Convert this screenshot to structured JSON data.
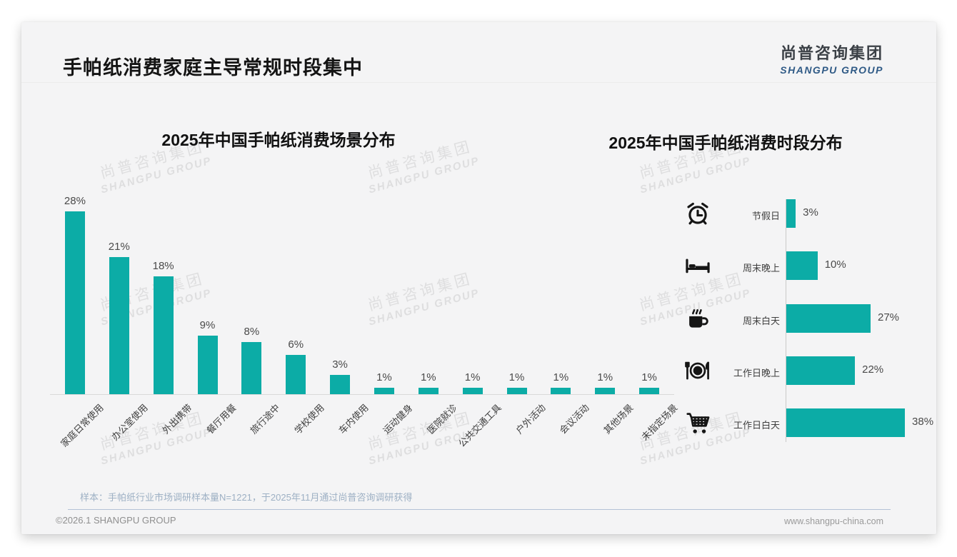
{
  "page": {
    "title": "手帕纸消费家庭主导常规时段集中",
    "logo": {
      "cn": "尚普咨询集团",
      "en": "SHANGPU GROUP"
    },
    "watermark": {
      "line1": "尚普咨询集团",
      "line2": "SHANGPU GROUP"
    },
    "footer": {
      "sample_note": "样本：手帕纸行业市场调研样本量N=1221，于2025年11月通过尚普咨询调研获得",
      "copyright": "©2026.1 SHANGPU GROUP",
      "website": "www.shangpu-china.com"
    }
  },
  "colors": {
    "bar": "#0caca6",
    "logo_blue": "#2f5a86"
  },
  "chart_data": [
    {
      "type": "bar",
      "orientation": "vertical",
      "title": "2025年中国手帕纸消费场景分布",
      "categories": [
        "家庭日常使用",
        "办公室使用",
        "外出携带",
        "餐厅用餐",
        "旅行途中",
        "学校使用",
        "车内使用",
        "运动健身",
        "医院就诊",
        "公共交通工具",
        "户外活动",
        "会议活动",
        "其他场景",
        "未指定场景"
      ],
      "values": [
        28,
        21,
        18,
        9,
        8,
        6,
        3,
        1,
        1,
        1,
        1,
        1,
        1,
        1
      ],
      "unit": "%",
      "ylim": [
        0,
        30
      ],
      "grid": false,
      "data_labels": true,
      "legend": "none"
    },
    {
      "type": "bar",
      "orientation": "horizontal",
      "title": "2025年中国手帕纸消费时段分布",
      "categories": [
        "节假日",
        "周末晚上",
        "周末白天",
        "工作日晚上",
        "工作日白天"
      ],
      "values": [
        3,
        10,
        27,
        22,
        38
      ],
      "icons": [
        "alarm-clock-icon",
        "bed-icon",
        "coffee-icon",
        "dining-icon",
        "shopping-cart-icon"
      ],
      "unit": "%",
      "xlim": [
        0,
        42
      ],
      "grid": false,
      "data_labels": true,
      "legend": "none"
    }
  ]
}
